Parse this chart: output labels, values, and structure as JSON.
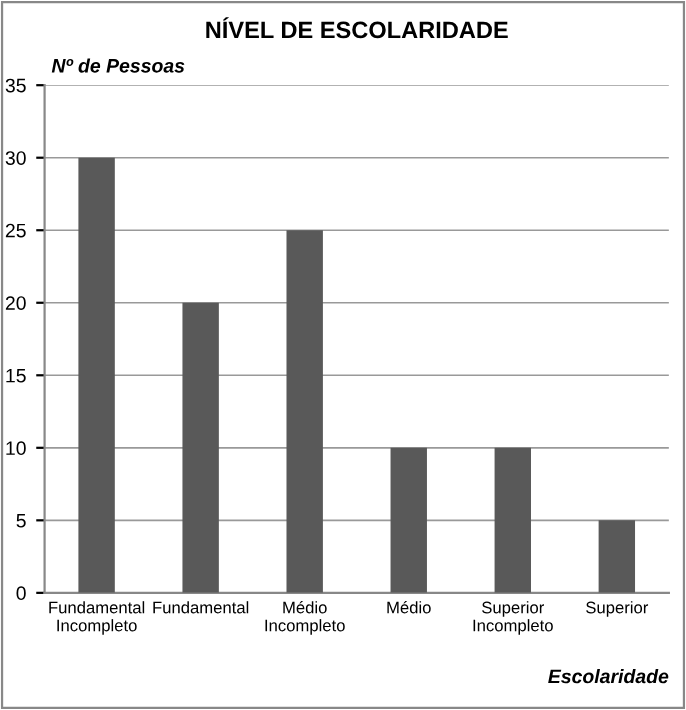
{
  "chart_data": {
    "type": "bar",
    "title": "NÍVEL DE ESCOLARIDADE",
    "ylabel": "Nº de Pessoas",
    "xlabel": "Escolaridade",
    "categories": [
      "Fundamental\nIncompleto",
      "Fundamental",
      "Médio\nIncompleto",
      "Médio",
      "Superior\nIncompleto",
      "Superior"
    ],
    "values": [
      30,
      20,
      25,
      10,
      10,
      5
    ],
    "color": "#595959",
    "ylim": [
      0,
      35
    ],
    "yticks": [
      0,
      5,
      10,
      15,
      20,
      25,
      30,
      35
    ],
    "grid": "y",
    "legend": false
  }
}
